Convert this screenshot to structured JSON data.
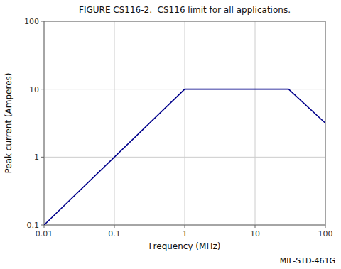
{
  "chart_data": {
    "type": "line",
    "title": "FIGURE CS116-2.  CS116 limit for all applications.",
    "xlabel": "Frequency (MHz)",
    "ylabel": "Peak current (Amperes)",
    "annotations": [
      "MIL-STD-461G"
    ],
    "x": [
      0.01,
      1.0,
      30.0,
      100.0
    ],
    "values": [
      0.1,
      10.0,
      10.0,
      3.16
    ],
    "color": "#00008B",
    "xlim": [
      0.01,
      100
    ],
    "ylim": [
      0.1,
      100
    ],
    "xticks": [
      0.01,
      0.1,
      1,
      10,
      100
    ],
    "yticks": [
      0.1,
      1,
      10,
      100
    ],
    "log": true,
    "grid": true
  }
}
